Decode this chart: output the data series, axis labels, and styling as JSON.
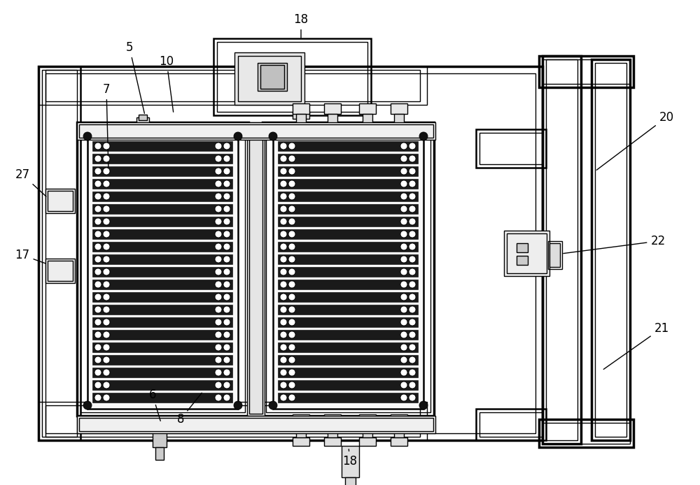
{
  "bg_color": "#ffffff",
  "lc": "#000000",
  "lw": 1.0,
  "tlw": 1.8,
  "flw": 2.5,
  "label_fs": 12,
  "fig_w": 10.0,
  "fig_h": 6.94
}
